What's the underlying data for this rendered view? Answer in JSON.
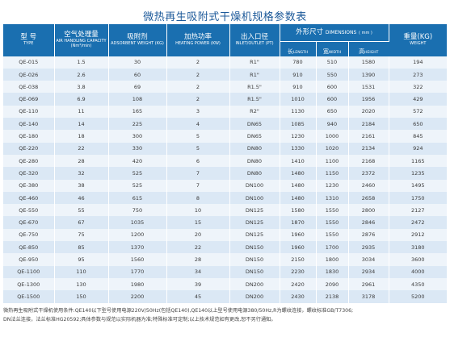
{
  "title": "微热再生吸附式干燥机规格参数表",
  "headers": {
    "model": {
      "cn": "型 号",
      "en": "TYPE"
    },
    "capacity": {
      "cn": "空气处理量",
      "en": "AIR HANDLING CAPACITY (Nm³/min)"
    },
    "adsorbent": {
      "cn": "吸附剂",
      "en": "ADSORBENT WEIGHT (KG)"
    },
    "heating": {
      "cn": "加热功率",
      "en": "HEATING POWER (KW)"
    },
    "inlet": {
      "cn": "出入口径",
      "en": "INLET/OUTLET (PT)"
    },
    "dimensions": {
      "cn": "外形尺寸",
      "en": "DIMENSIONS",
      "unit": "( mm )"
    },
    "length": {
      "cn": "长",
      "en": "LENGTH"
    },
    "width": {
      "cn": "宽",
      "en": "WIDTH"
    },
    "height": {
      "cn": "高",
      "en": "HEIGHT"
    },
    "weight": {
      "cn": "重量(KG)",
      "en": "WEIGHT"
    }
  },
  "rows": [
    [
      "QE-015",
      "1.5",
      "30",
      "2",
      "R1\"",
      "780",
      "510",
      "1580",
      "194"
    ],
    [
      "QE-026",
      "2.6",
      "60",
      "2",
      "R1\"",
      "910",
      "550",
      "1390",
      "273"
    ],
    [
      "QE-038",
      "3.8",
      "69",
      "2",
      "R1.5\"",
      "910",
      "600",
      "1531",
      "322"
    ],
    [
      "QE-069",
      "6.9",
      "108",
      "2",
      "R1.5\"",
      "1010",
      "600",
      "1956",
      "429"
    ],
    [
      "QE-110",
      "11",
      "165",
      "3",
      "R2\"",
      "1130",
      "650",
      "2020",
      "572"
    ],
    [
      "QE-140",
      "14",
      "225",
      "4",
      "DN65",
      "1085",
      "940",
      "2184",
      "650"
    ],
    [
      "QE-180",
      "18",
      "300",
      "5",
      "DN65",
      "1230",
      "1000",
      "2161",
      "845"
    ],
    [
      "QE-220",
      "22",
      "330",
      "5",
      "DN80",
      "1330",
      "1020",
      "2134",
      "924"
    ],
    [
      "QE-280",
      "28",
      "420",
      "6",
      "DN80",
      "1410",
      "1100",
      "2168",
      "1165"
    ],
    [
      "QE-320",
      "32",
      "525",
      "7",
      "DN80",
      "1480",
      "1150",
      "2372",
      "1235"
    ],
    [
      "QE-380",
      "38",
      "525",
      "7",
      "DN100",
      "1480",
      "1230",
      "2460",
      "1495"
    ],
    [
      "QE-460",
      "46",
      "615",
      "8",
      "DN100",
      "1480",
      "1310",
      "2658",
      "1750"
    ],
    [
      "QE-550",
      "55",
      "750",
      "10",
      "DN125",
      "1580",
      "1550",
      "2800",
      "2127"
    ],
    [
      "QE-670",
      "67",
      "1035",
      "15",
      "DN125",
      "1870",
      "1550",
      "2846",
      "2472"
    ],
    [
      "QE-750",
      "75",
      "1200",
      "20",
      "DN125",
      "1960",
      "1550",
      "2876",
      "2912"
    ],
    [
      "QE-850",
      "85",
      "1370",
      "22",
      "DN150",
      "1960",
      "1700",
      "2935",
      "3180"
    ],
    [
      "QE-950",
      "95",
      "1560",
      "28",
      "DN150",
      "2150",
      "1800",
      "3034",
      "3600"
    ],
    [
      "QE-1100",
      "110",
      "1770",
      "34",
      "DN150",
      "2230",
      "1830",
      "2934",
      "4000"
    ],
    [
      "QE-1300",
      "130",
      "1980",
      "39",
      "DN200",
      "2420",
      "2090",
      "2961",
      "4350"
    ],
    [
      "QE-1500",
      "150",
      "2200",
      "45",
      "DN200",
      "2430",
      "2138",
      "3178",
      "5200"
    ]
  ],
  "notes": [
    "微热再生吸附式干燥机使用条件:QE140以下型号使用电源220V/50Hz(包括QE140),QE140以上型号使用电源380/50Hz,R为螺纹连接，螺纹标准GB/T7306;",
    "DN法兰连接，法兰标准HG20592;具体参数与规范以实际机器为准;特殊标准可定制;以上技术规范如有更改,恕不另行通知。"
  ]
}
